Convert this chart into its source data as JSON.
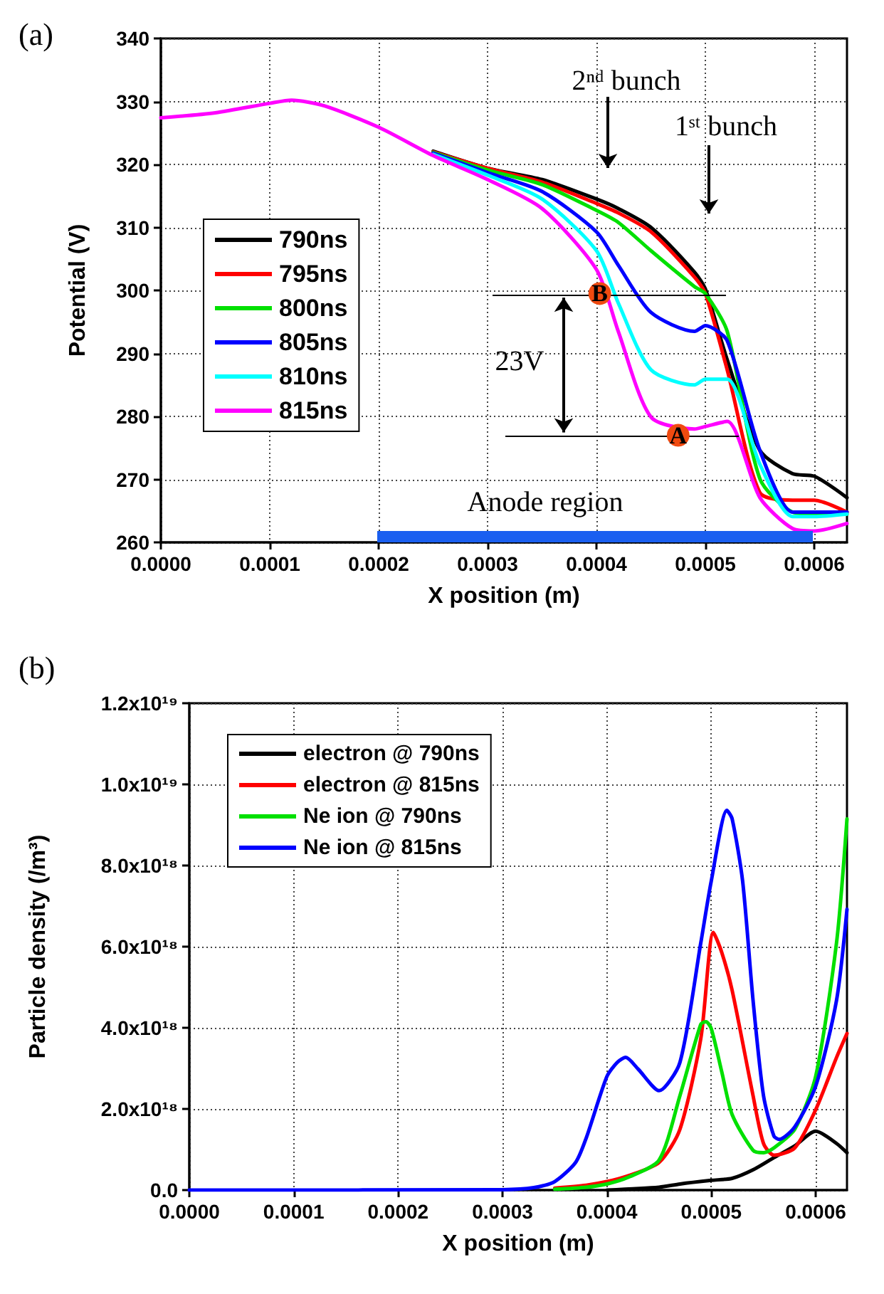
{
  "chart_data": [
    {
      "type": "line",
      "title": "(a)",
      "xlabel": "X position (m)",
      "ylabel": "Potential (V)",
      "x": [
        0,
        5e-05,
        0.0001,
        0.00012,
        0.00015,
        0.0002,
        0.00025,
        0.0003,
        0.00035,
        0.0004,
        0.00042,
        0.00045,
        0.00049,
        0.0005,
        0.00052,
        0.00055,
        0.00058,
        0.0006,
        0.00063
      ],
      "series": [
        {
          "name": "790ns",
          "color": "#000000",
          "values": [
            null,
            null,
            null,
            null,
            null,
            null,
            322.1,
            319.4,
            317.6,
            314.5,
            313.0,
            310.0,
            302.9,
            300.2,
            289.0,
            274.6,
            270.9,
            270.5,
            267.1
          ]
        },
        {
          "name": "795ns",
          "color": "#ff0000",
          "values": [
            null,
            null,
            null,
            null,
            null,
            null,
            322.0,
            319.4,
            317.2,
            313.8,
            312.3,
            309.3,
            302.1,
            299.5,
            287.4,
            267.9,
            266.7,
            266.7,
            264.8
          ]
        },
        {
          "name": "800ns",
          "color": "#00e000",
          "values": [
            null,
            null,
            null,
            null,
            null,
            null,
            321.9,
            319.1,
            316.8,
            312.7,
            310.8,
            306.3,
            300.6,
            299.5,
            293.5,
            270.1,
            264.8,
            264.5,
            264.5
          ]
        },
        {
          "name": "805ns",
          "color": "#0000ff",
          "values": [
            null,
            null,
            null,
            null,
            null,
            null,
            321.8,
            318.7,
            315.7,
            309.3,
            304.0,
            296.5,
            293.5,
            294.4,
            292.0,
            274.6,
            264.8,
            264.8,
            264.8
          ]
        },
        {
          "name": "810ns",
          "color": "#00ffff",
          "values": [
            null,
            null,
            null,
            null,
            null,
            null,
            321.6,
            318.3,
            314.5,
            306.3,
            298.0,
            287.4,
            285.0,
            285.9,
            285.9,
            272.4,
            264.1,
            264.1,
            264.5
          ]
        },
        {
          "name": "815ns",
          "color": "#ff00ff",
          "values": [
            327.4,
            328.2,
            329.7,
            330.2,
            329.3,
            325.9,
            321.4,
            317.6,
            313.0,
            303.3,
            293.5,
            279.9,
            278.0,
            278.4,
            279.2,
            267.1,
            262.2,
            261.8,
            263.0
          ]
        }
      ],
      "xlim": [
        0,
        0.00063
      ],
      "xticks": [
        {
          "value": 0,
          "label": "0.0000"
        },
        {
          "value": 0.0001,
          "label": "0.0001"
        },
        {
          "value": 0.0002,
          "label": "0.0002"
        },
        {
          "value": 0.0003,
          "label": "0.0003"
        },
        {
          "value": 0.0004,
          "label": "0.0004"
        },
        {
          "value": 0.0005,
          "label": "0.0005"
        },
        {
          "value": 0.0006,
          "label": "0.0006"
        }
      ],
      "ylim": [
        260,
        340
      ],
      "yticks": [
        260,
        270,
        280,
        290,
        300,
        310,
        320,
        330,
        340
      ],
      "annotations": [
        "2ⁿᵈ bunch",
        "1ˢᵗ bunch",
        "23V",
        {
          "text": "A",
          "x": 0.000475,
          "y": 277
        },
        {
          "text": "B",
          "x": 0.000403,
          "y": 299.5
        },
        "Anode region"
      ],
      "ref_lines": [
        {
          "axis": "y",
          "value": 299.3,
          "color": "#000000"
        },
        {
          "axis": "y",
          "value": 277,
          "color": "#000000"
        }
      ],
      "grid": true,
      "legend": "bottom left",
      "marker": "none",
      "line_style": "solid"
    },
    {
      "type": "line",
      "title": "(b)",
      "xlabel": "X position (m)",
      "ylabel": "Particle density (/m³)",
      "series": [
        {
          "name": "electron @ 790ns",
          "color": "#000000",
          "x": [
            0.0004,
            0.00045,
            0.00047,
            0.0005,
            0.00052,
            0.00054,
            0.00056,
            0.00058,
            0.0006,
            0.00062,
            0.00063
          ],
          "values": [
            0,
            7e+16,
            1.5e+17,
            2.4e+17,
            2.9e+17,
            5e+17,
            8e+17,
            1.09e+18,
            1.45e+18,
            1.15e+18,
            9.2e+17
          ]
        },
        {
          "name": "electron @ 815ns",
          "color": "#ff0000",
          "x": [
            0.00035,
            0.00038,
            0.0004,
            0.00042,
            0.00045,
            0.00047,
            0.00049,
            0.000502,
            0.00051,
            0.00052,
            0.00054,
            0.00055,
            0.00056,
            0.00058,
            0.0006,
            0.00062,
            0.00063
          ],
          "values": [
            5e+16,
            1.2e+17,
            2.1e+17,
            3.5e+17,
            6.8e+17,
            1.5e+18,
            3.74e+18,
            6.35e+18,
            5.86e+18,
            4.92e+18,
            2.33e+18,
            1.15e+18,
            8.6e+17,
            1.04e+18,
            1.98e+18,
            3.27e+18,
            3.86e+18
          ]
        },
        {
          "name": "Ne ion @ 790ns",
          "color": "#00e000",
          "x": [
            0.00035,
            0.00038,
            0.0004,
            0.00042,
            0.00045,
            0.00047,
            0.00049,
            0.000495,
            0.0005,
            0.00051,
            0.00052,
            0.00054,
            0.00055,
            0.00056,
            0.00058,
            0.0006,
            0.00062,
            0.00063
          ],
          "values": [
            2e+16,
            7e+16,
            1.5e+17,
            3.1e+17,
            7.4e+17,
            2.33e+18,
            4.09e+18,
            4.15e+18,
            3.98e+18,
            2.92e+18,
            1.86e+18,
            9.8e+17,
            9.2e+17,
            1.04e+18,
            1.5e+18,
            2.8e+18,
            6.1e+18,
            9.15e+18
          ]
        },
        {
          "name": "Ne ion @ 815ns",
          "color": "#0000ff",
          "x": [
            0,
            0.0003,
            0.00033,
            0.00035,
            0.00037,
            0.00038,
            0.0004,
            0.00041,
            0.000418,
            0.00043,
            0.00045,
            0.00047,
            0.00049,
            0.0005,
            0.000515,
            0.00052,
            0.00053,
            0.00054,
            0.00055,
            0.00056,
            0.000565,
            0.00058,
            0.0006,
            0.00062,
            0.00063
          ],
          "values": [
            0,
            1e+16,
            6e+16,
            2.1e+17,
            6.8e+17,
            1.27e+18,
            2.8e+18,
            3.15e+18,
            3.27e+18,
            2.98e+18,
            2.45e+18,
            3.15e+18,
            6.1e+18,
            7.62e+18,
            9.36e+18,
            9.15e+18,
            7.62e+18,
            4.68e+18,
            2.33e+18,
            1.33e+18,
            1.25e+18,
            1.56e+18,
            2.56e+18,
            4.68e+18,
            6.92e+18
          ]
        }
      ],
      "xlim": [
        0,
        0.00063
      ],
      "xticks": [
        {
          "value": 0,
          "label": "0.0000"
        },
        {
          "value": 0.0001,
          "label": "0.0001"
        },
        {
          "value": 0.0002,
          "label": "0.0002"
        },
        {
          "value": 0.0003,
          "label": "0.0003"
        },
        {
          "value": 0.0004,
          "label": "0.0004"
        },
        {
          "value": 0.0005,
          "label": "0.0005"
        },
        {
          "value": 0.0006,
          "label": "0.0006"
        }
      ],
      "ylim": [
        0,
        1.2e+19
      ],
      "yticks": [
        {
          "value": 0,
          "label": "0.0"
        },
        {
          "value": 2e+18,
          "label": "2.0x10¹⁸"
        },
        {
          "value": 4e+18,
          "label": "4.0x10¹⁸"
        },
        {
          "value": 6e+18,
          "label": "6.0x10¹⁸"
        },
        {
          "value": 8e+18,
          "label": "8.0x10¹⁸"
        },
        {
          "value": 1e+19,
          "label": "1.0x10¹⁹"
        },
        {
          "value": 1.2e+19,
          "label": "1.2x10¹⁹"
        }
      ],
      "grid": true,
      "legend": "top left",
      "marker": "none",
      "line_style": "solid"
    }
  ]
}
